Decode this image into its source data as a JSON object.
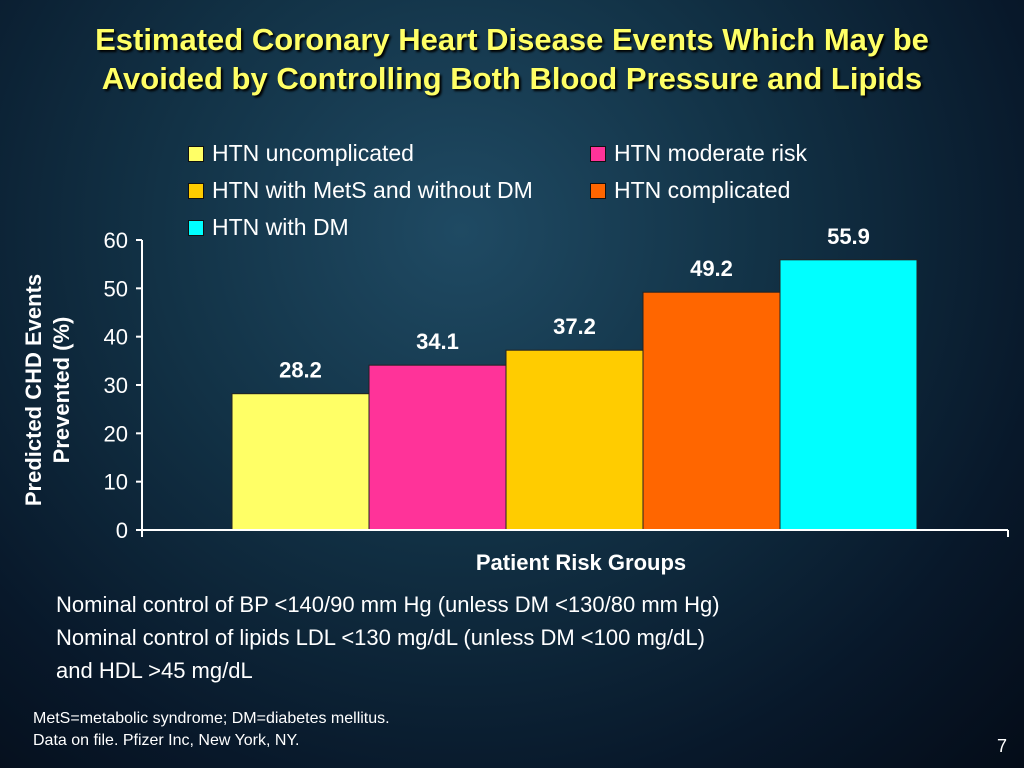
{
  "title": {
    "line1": "Estimated Coronary Heart Disease Events Which May be",
    "line2": "Avoided by Controlling Both Blood Pressure and Lipids"
  },
  "colors": {
    "title": "#ffff66",
    "axis": "#ffffff",
    "background": "#0d2838"
  },
  "chart_data": {
    "type": "bar",
    "title": "Estimated Coronary Heart Disease Events Which May be Avoided by Controlling Both Blood Pressure and Lipids",
    "xlabel": "Patient Risk Groups",
    "ylabel_lines": [
      "Predicted CHD Events",
      "Prevented (%)"
    ],
    "ylim": [
      0,
      60
    ],
    "yticks": [
      "0",
      "10",
      "20",
      "30",
      "40",
      "50",
      "60"
    ],
    "grid": false,
    "legend_position": "top",
    "series": [
      {
        "name": "HTN uncomplicated",
        "value": 28.2,
        "label": "28.2",
        "color": "#ffff66"
      },
      {
        "name": "HTN moderate risk",
        "value": 34.1,
        "label": "34.1",
        "color": "#ff3399"
      },
      {
        "name": "HTN with MetS and without DM",
        "value": 37.2,
        "label": "37.2",
        "color": "#ffcc00"
      },
      {
        "name": "HTN complicated",
        "value": 49.2,
        "label": "49.2",
        "color": "#ff6600"
      },
      {
        "name": "HTN with DM",
        "value": 55.9,
        "label": "55.9",
        "color": "#00ffff"
      }
    ]
  },
  "notes": {
    "line1": "Nominal control of BP <140/90 mm Hg (unless DM <130/80 mm Hg)",
    "line2": "Nominal control of lipids LDL <130 mg/dL (unless DM <100 mg/dL)",
    "line3": "and HDL >45 mg/dL"
  },
  "footnote": {
    "line1": "MetS=metabolic syndrome; DM=diabetes mellitus.",
    "line2": "Data on file. Pfizer Inc, New York, NY."
  },
  "page_number": "7"
}
